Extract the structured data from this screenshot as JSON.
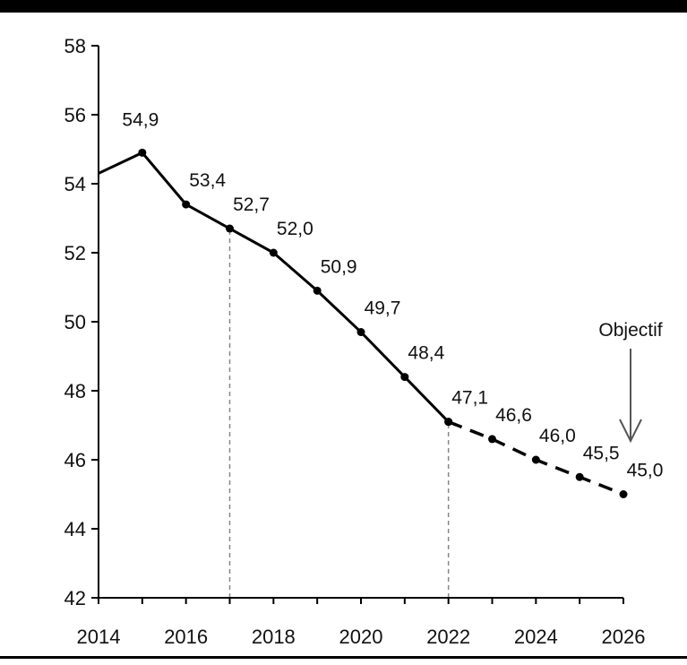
{
  "chart_data": {
    "type": "line",
    "x_range": [
      2014,
      2026
    ],
    "ylim": [
      42,
      58
    ],
    "y_ticks": [
      "42",
      "44",
      "46",
      "48",
      "50",
      "52",
      "54",
      "56",
      "58"
    ],
    "x_ticks": [
      "2014",
      "2016",
      "2018",
      "2020",
      "2022",
      "2024",
      "2026"
    ],
    "grid": false,
    "series": [
      {
        "style": "solid",
        "points": [
          {
            "x": 2014,
            "y": 54.3
          },
          {
            "x": 2015,
            "y": 54.9
          },
          {
            "x": 2016,
            "y": 53.4
          },
          {
            "x": 2017,
            "y": 52.7
          },
          {
            "x": 2018,
            "y": 52.0
          },
          {
            "x": 2019,
            "y": 50.9
          },
          {
            "x": 2020,
            "y": 49.7
          },
          {
            "x": 2021,
            "y": 48.4
          },
          {
            "x": 2022,
            "y": 47.1
          }
        ]
      },
      {
        "style": "dashed",
        "points": [
          {
            "x": 2022,
            "y": 47.1
          },
          {
            "x": 2023,
            "y": 46.6
          },
          {
            "x": 2024,
            "y": 46.0
          },
          {
            "x": 2025,
            "y": 45.5
          },
          {
            "x": 2026,
            "y": 45.0
          }
        ]
      }
    ],
    "data_labels": [
      {
        "x": 2015,
        "y": 54.9,
        "text": "54,9"
      },
      {
        "x": 2016,
        "y": 53.4,
        "text": "53,4"
      },
      {
        "x": 2017,
        "y": 52.7,
        "text": "52,7"
      },
      {
        "x": 2018,
        "y": 52.0,
        "text": "52,0"
      },
      {
        "x": 2019,
        "y": 50.9,
        "text": "50,9"
      },
      {
        "x": 2020,
        "y": 49.7,
        "text": "49,7"
      },
      {
        "x": 2021,
        "y": 48.4,
        "text": "48,4"
      },
      {
        "x": 2022,
        "y": 47.1,
        "text": "47,1"
      },
      {
        "x": 2023,
        "y": 46.6,
        "text": "46,6"
      },
      {
        "x": 2024,
        "y": 46.0,
        "text": "46,0"
      },
      {
        "x": 2025,
        "y": 45.5,
        "text": "45,5"
      },
      {
        "x": 2026,
        "y": 45.0,
        "text": "45,0"
      }
    ],
    "reference_lines": [
      {
        "x": 2017,
        "y_to": 52.7
      },
      {
        "x": 2022,
        "y_to": 47.1
      }
    ],
    "annotation": {
      "text": "Objectif",
      "x": 2026,
      "points_to_y": 45.0
    }
  }
}
